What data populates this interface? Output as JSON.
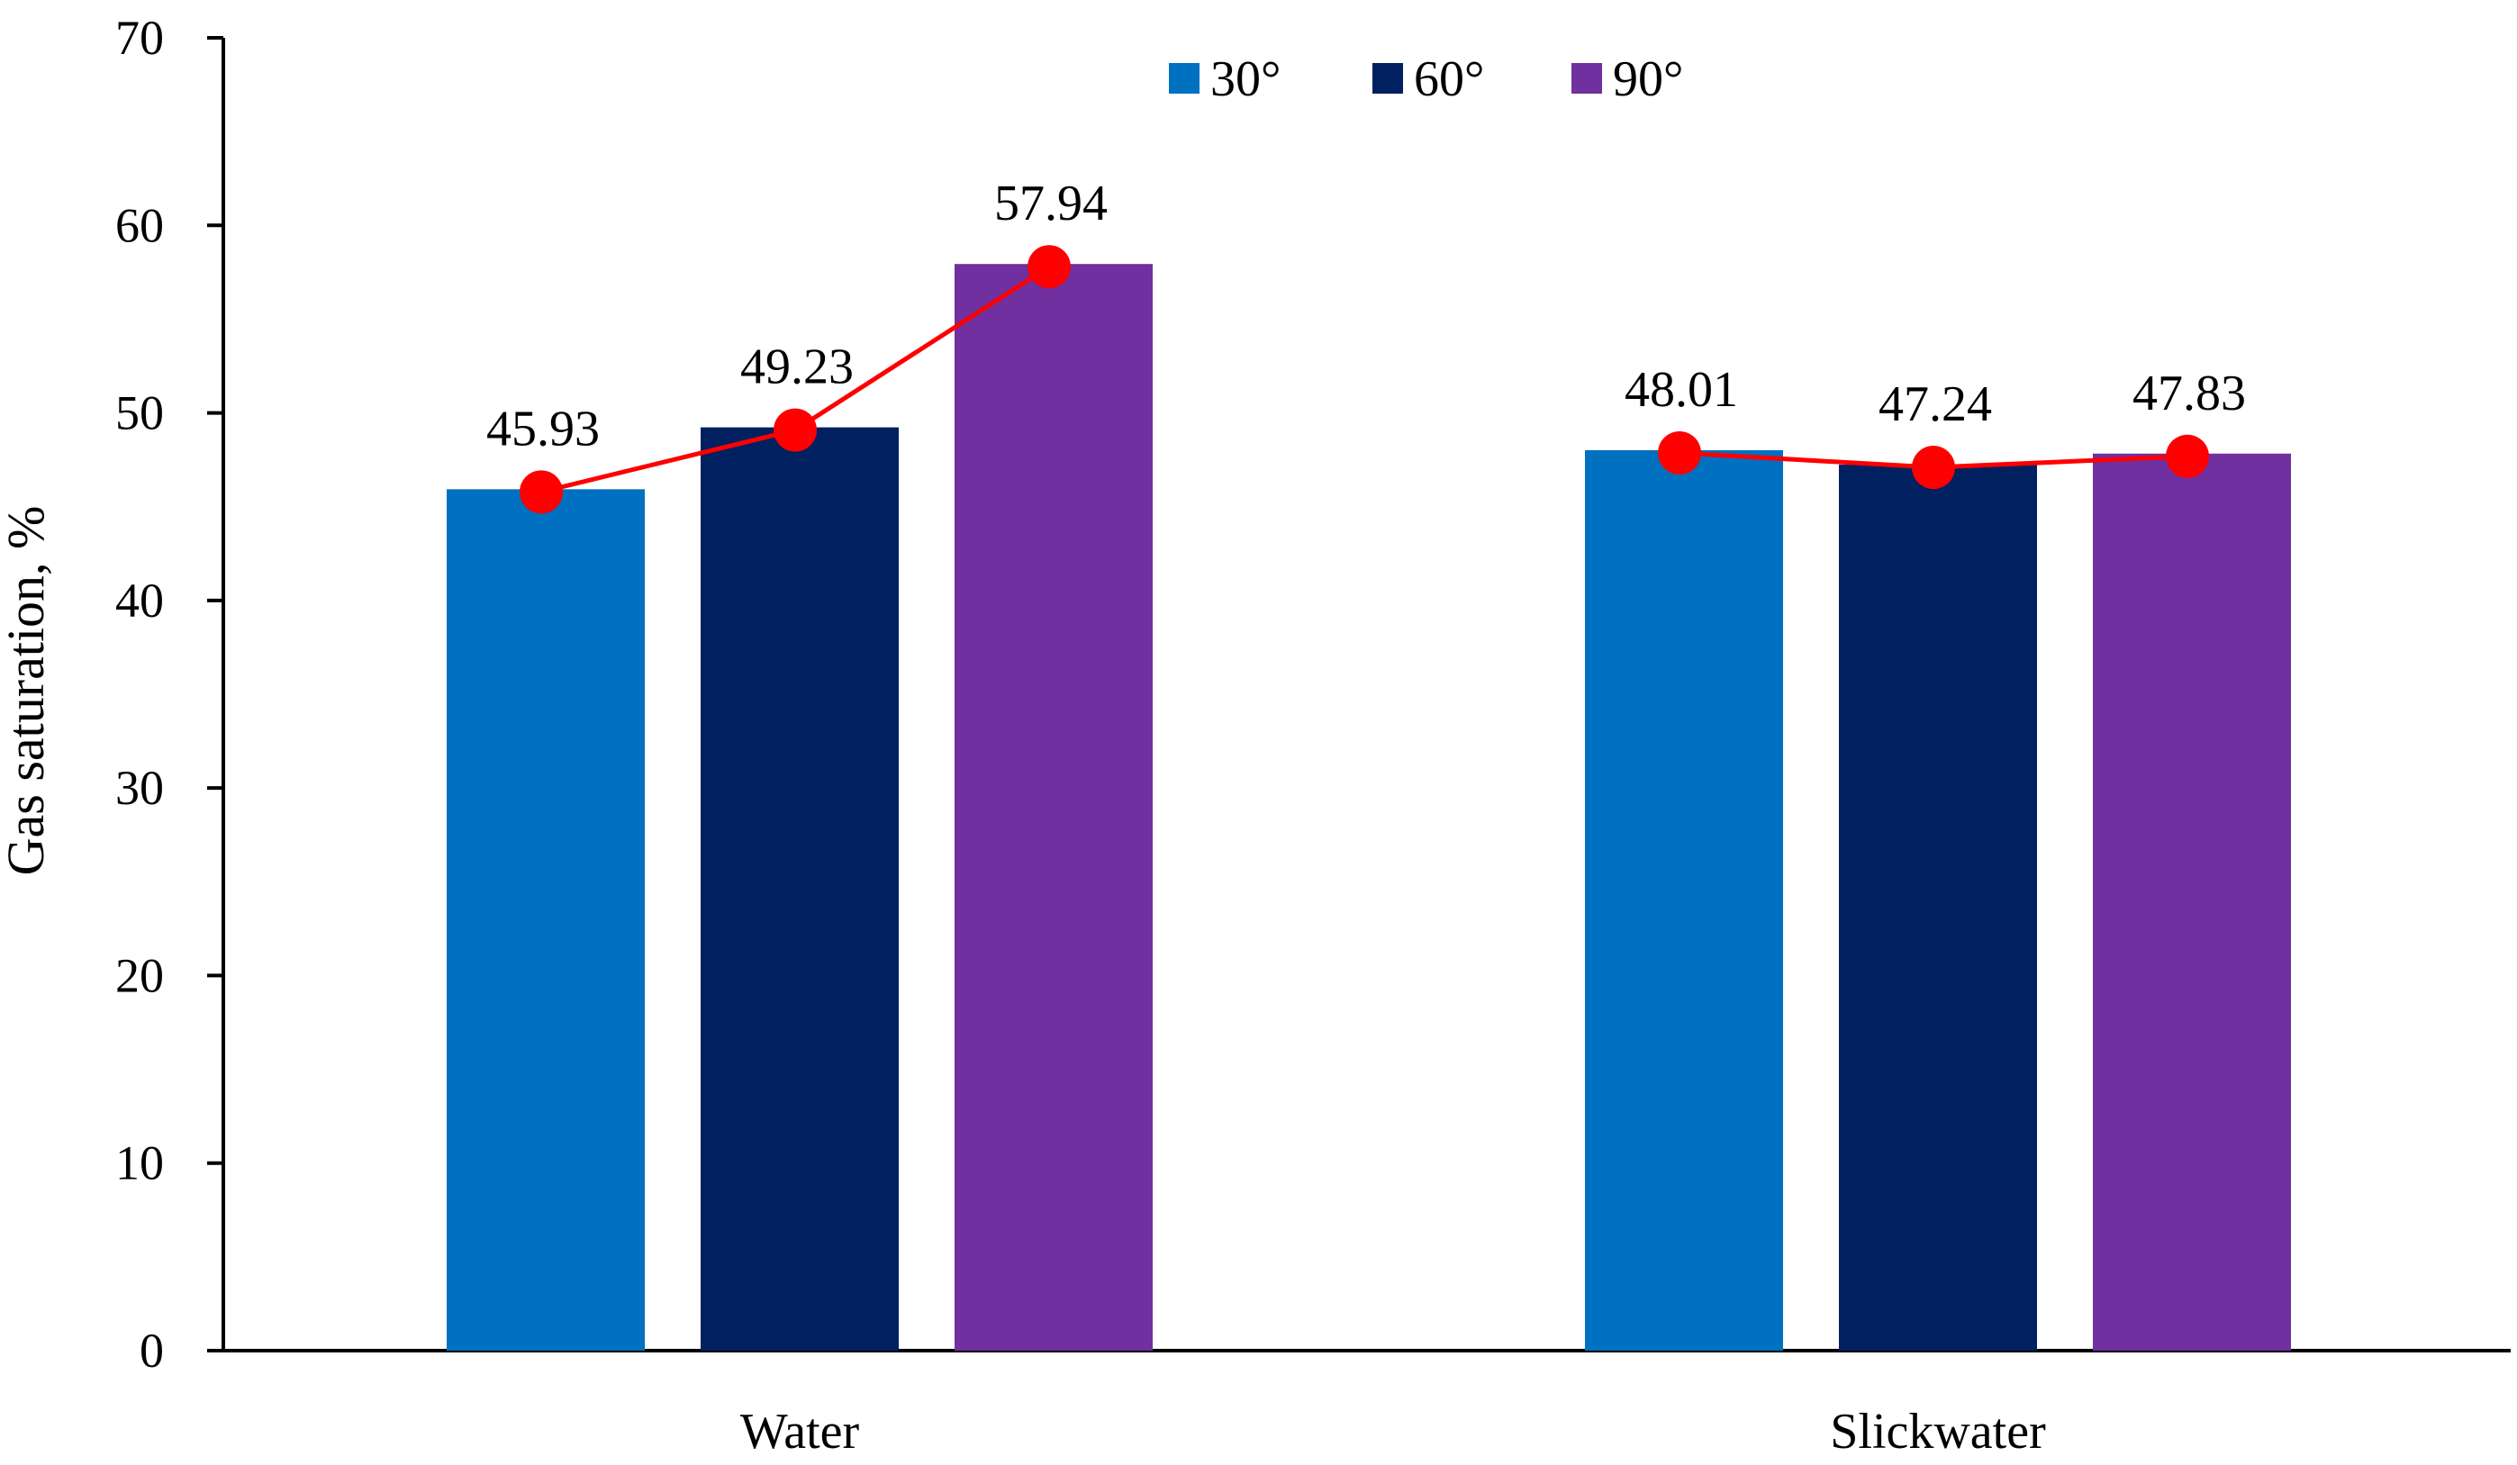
{
  "chart_data": {
    "type": "bar",
    "categories": [
      "Water",
      "Slickwater"
    ],
    "series": [
      {
        "name": "30°",
        "color": "#0070c0",
        "values": [
          45.93,
          48.01
        ]
      },
      {
        "name": "60°",
        "color": "#002060",
        "values": [
          49.23,
          47.24
        ]
      },
      {
        "name": "90°",
        "color": "#7030a0",
        "values": [
          57.94,
          47.83
        ]
      }
    ],
    "overlay": {
      "type": "line",
      "color": "#ff0000",
      "marker": "circle",
      "per_category": true
    },
    "data_labels": [
      [
        "45.93",
        "49.23",
        "57.94"
      ],
      [
        "48.01",
        "47.24",
        "47.83"
      ]
    ],
    "title": "",
    "xlabel": "",
    "ylabel": "Gas saturation, %",
    "ylim": [
      0,
      70
    ],
    "yticks": [
      0,
      10,
      20,
      30,
      40,
      50,
      60,
      70
    ],
    "grid": false,
    "legend": "top-center"
  }
}
